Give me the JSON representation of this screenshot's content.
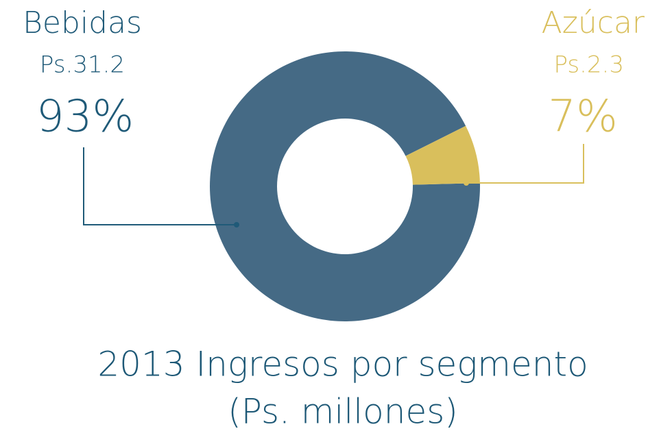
{
  "chart_data": {
    "type": "donut",
    "title": "2013 Ingresos por segmento",
    "subtitle": "(Ps. millones)",
    "categories": [
      "Bebidas",
      "Azúcar"
    ],
    "values": [
      93,
      7
    ],
    "value_labels": [
      "93%",
      "7%"
    ],
    "amount_labels": [
      "Ps.31.2",
      "Ps.2.3"
    ],
    "colors": [
      "#456a85",
      "#d9bf5c"
    ]
  }
}
